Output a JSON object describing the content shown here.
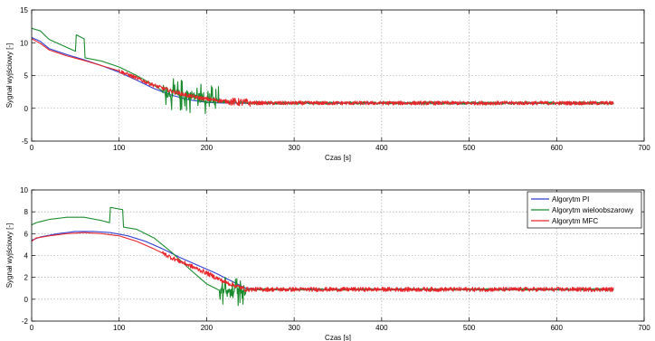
{
  "chart_data": [
    {
      "type": "line",
      "title": "",
      "xlabel": "Czas [s]",
      "ylabel": "Sygnał wyjściowy [-]",
      "xlim": [
        0,
        700
      ],
      "ylim": [
        -5,
        15
      ],
      "xticks": [
        "0",
        "100",
        "200",
        "300",
        "400",
        "500",
        "600",
        "700"
      ],
      "yticks": [
        "-5",
        "0",
        "5",
        "10",
        "15"
      ],
      "grid": true,
      "legend": "none",
      "series": [
        {
          "color": "#2f3ed0",
          "noise_after_x": 240,
          "noise_amp": 0.12,
          "x": [
            0,
            10,
            20,
            40,
            60,
            80,
            100,
            120,
            140,
            160,
            180,
            200,
            220,
            240,
            260,
            300,
            400,
            500,
            600,
            665
          ],
          "y": [
            10.8,
            10.2,
            9.1,
            8.2,
            7.4,
            6.5,
            5.5,
            4.3,
            3.0,
            2.0,
            1.3,
            0.9,
            0.8,
            0.8,
            0.8,
            0.8,
            0.8,
            0.8,
            0.8,
            0.8
          ]
        },
        {
          "color": "#1a8c2e",
          "noise_after_x": 150,
          "noise_amp": 0.5,
          "x": [
            0,
            10,
            20,
            40,
            50,
            51,
            60,
            61,
            80,
            100,
            120,
            140,
            150,
            160,
            180,
            200,
            210,
            220,
            240,
            260,
            300,
            400,
            500,
            600,
            665
          ],
          "y": [
            12.2,
            11.8,
            10.5,
            9.3,
            8.7,
            11.2,
            10.6,
            7.7,
            7.2,
            6.3,
            5.0,
            3.5,
            2.6,
            2.2,
            1.8,
            1.5,
            1.0,
            1.0,
            0.9,
            0.8,
            0.8,
            0.8,
            0.8,
            0.8,
            0.8
          ]
        },
        {
          "color": "#e8262b",
          "noise_after_x": 100,
          "noise_amp": 0.3,
          "x": [
            0,
            10,
            20,
            40,
            60,
            80,
            100,
            120,
            140,
            160,
            180,
            200,
            220,
            240,
            260,
            300,
            400,
            500,
            600,
            665
          ],
          "y": [
            10.6,
            9.9,
            8.9,
            8.0,
            7.3,
            6.5,
            5.7,
            4.6,
            3.5,
            2.6,
            1.9,
            1.4,
            1.1,
            0.9,
            0.8,
            0.8,
            0.8,
            0.8,
            0.8,
            0.8
          ]
        }
      ]
    },
    {
      "type": "line",
      "title": "",
      "xlabel": "Czas [s]",
      "ylabel": "Sygnał wyjściowy [-]",
      "xlim": [
        0,
        700
      ],
      "ylim": [
        -2,
        10
      ],
      "xticks": [
        "0",
        "100",
        "200",
        "300",
        "400",
        "500",
        "600",
        "700"
      ],
      "yticks": [
        "-2",
        "0",
        "2",
        "4",
        "6",
        "8",
        "10"
      ],
      "grid": true,
      "legend": "top-right",
      "series": [
        {
          "name": "Algorytm PI",
          "color": "#2f3ed0",
          "noise_after_x": 250,
          "noise_amp": 0.06,
          "x": [
            0,
            10,
            30,
            50,
            70,
            90,
            110,
            130,
            150,
            170,
            190,
            210,
            230,
            245,
            260,
            300,
            400,
            500,
            600,
            665
          ],
          "y": [
            5.4,
            5.7,
            6.0,
            6.2,
            6.2,
            6.1,
            5.8,
            5.3,
            4.6,
            3.8,
            3.1,
            2.4,
            1.6,
            1.0,
            0.9,
            0.9,
            0.9,
            0.9,
            0.9,
            0.9
          ]
        },
        {
          "name": "Algorytm wieloobszarowy",
          "color": "#1a8c2e",
          "noise_after_x": 215,
          "noise_amp": 0.35,
          "x": [
            0,
            5,
            20,
            40,
            60,
            80,
            89,
            90,
            104,
            105,
            120,
            140,
            160,
            180,
            200,
            215,
            230,
            245,
            260,
            300,
            400,
            500,
            600,
            665
          ],
          "y": [
            6.8,
            7.0,
            7.3,
            7.5,
            7.5,
            7.2,
            7.0,
            8.4,
            8.2,
            6.6,
            6.4,
            5.6,
            4.3,
            2.8,
            1.4,
            0.8,
            0.7,
            0.9,
            0.9,
            0.9,
            0.9,
            0.9,
            0.9,
            0.9
          ]
        },
        {
          "name": "Algorytm MFC",
          "color": "#e8262b",
          "noise_after_x": 150,
          "noise_amp": 0.2,
          "x": [
            0,
            5,
            20,
            40,
            60,
            80,
            100,
            120,
            140,
            160,
            180,
            200,
            220,
            245,
            260,
            300,
            400,
            500,
            600,
            665
          ],
          "y": [
            5.3,
            5.6,
            5.8,
            6.0,
            6.1,
            6.0,
            5.8,
            5.3,
            4.6,
            3.8,
            3.1,
            2.4,
            1.6,
            0.9,
            0.9,
            0.9,
            0.9,
            0.9,
            0.9,
            0.9
          ]
        }
      ]
    }
  ]
}
